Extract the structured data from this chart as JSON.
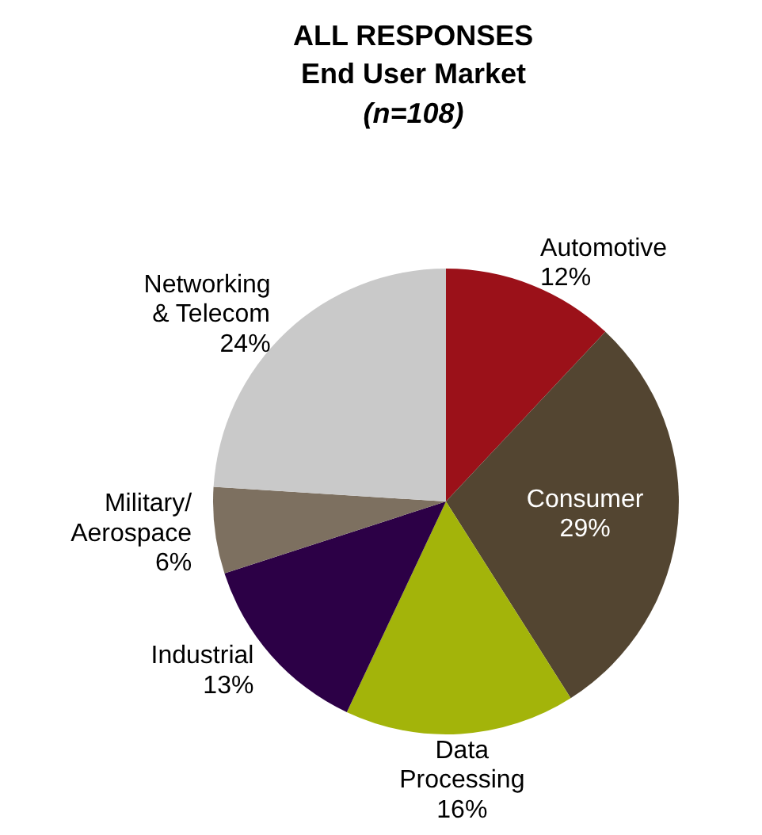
{
  "chart_data": {
    "type": "pie",
    "title": "ALL RESPONSES",
    "subtitle": "End User Market",
    "annotations": [
      "(n=108)"
    ],
    "categories": [
      "Automotive",
      "Consumer",
      "Data\nProcessing",
      "Industrial",
      "Military/\nAerospace",
      "Networking\n& Telecom"
    ],
    "values": [
      12,
      29,
      16,
      13,
      6,
      24
    ],
    "value_labels": [
      "12%",
      "29%",
      "16%",
      "13%",
      "6%",
      "24%"
    ],
    "colors": [
      "#9b1119",
      "#534531",
      "#a3b40a",
      "#2c0046",
      "#7d7060",
      "#c9c9c9"
    ],
    "legend": false
  }
}
